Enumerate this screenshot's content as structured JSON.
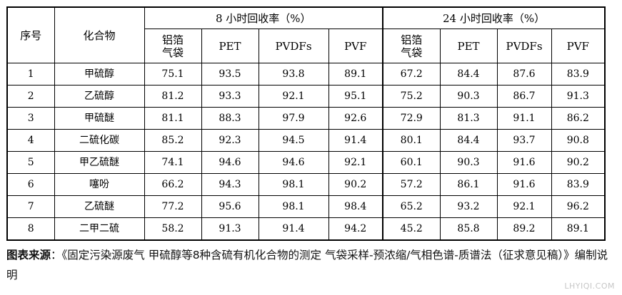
{
  "table": {
    "header": {
      "seq": "序号",
      "compound": "化合物",
      "group_8h": "8 小时回收率（%）",
      "group_24h": "24 小时回收率（%）",
      "sub": [
        "铝箔\n气袋",
        "PET",
        "PVDFs",
        "PVF",
        "铝箔\n气袋",
        "PET",
        "PVDFs",
        "PVF"
      ]
    },
    "rows": [
      {
        "no": "1",
        "name": "甲硫醇",
        "vals": [
          "75.1",
          "93.5",
          "93.8",
          "89.1",
          "67.2",
          "84.4",
          "87.6",
          "83.9"
        ]
      },
      {
        "no": "2",
        "name": "乙硫醇",
        "vals": [
          "81.2",
          "93.3",
          "92.1",
          "95.1",
          "75.2",
          "90.3",
          "86.7",
          "91.3"
        ]
      },
      {
        "no": "3",
        "name": "甲硫醚",
        "vals": [
          "81.1",
          "88.3",
          "97.9",
          "92.6",
          "72.9",
          "81.3",
          "91.1",
          "86.2"
        ]
      },
      {
        "no": "4",
        "name": "二硫化碳",
        "vals": [
          "85.2",
          "92.3",
          "94.5",
          "91.4",
          "80.1",
          "84.4",
          "93.7",
          "90.8"
        ]
      },
      {
        "no": "5",
        "name": "甲乙硫醚",
        "vals": [
          "74.1",
          "94.6",
          "94.6",
          "92.1",
          "60.1",
          "90.3",
          "91.6",
          "90.2"
        ]
      },
      {
        "no": "6",
        "name": "噻吩",
        "vals": [
          "66.2",
          "94.3",
          "98.1",
          "90.2",
          "57.2",
          "86.1",
          "91.6",
          "83.9"
        ]
      },
      {
        "no": "7",
        "name": "乙硫醚",
        "vals": [
          "77.2",
          "95.6",
          "98.1",
          "98.4",
          "65.2",
          "93.2",
          "92.1",
          "96.2"
        ]
      },
      {
        "no": "8",
        "name": "二甲二硫",
        "vals": [
          "58.2",
          "91.3",
          "91.4",
          "94.2",
          "45.2",
          "85.8",
          "89.2",
          "89.1"
        ]
      }
    ]
  },
  "caption": {
    "lead": "图表来源",
    "text": "：《固定污染源废气 甲硫醇等8种含硫有机化合物的测定 气袋采样-预浓缩/气相色谱-质谱法（征求意见稿）》编制说明"
  },
  "watermark": "LHYIQI.COM"
}
